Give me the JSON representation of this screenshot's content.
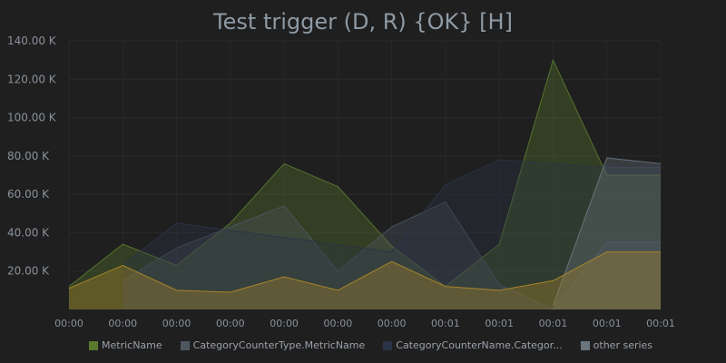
{
  "chart_data": {
    "type": "area",
    "title": "Test trigger (D, R) {OK} [H]",
    "y_tick_labels": [
      "20.00 K",
      "40.00 K",
      "60.00 K",
      "80.00 K",
      "100.00 K",
      "120.00 K",
      "140.00 K"
    ],
    "y_tick_values": [
      20000,
      40000,
      60000,
      80000,
      100000,
      120000,
      140000
    ],
    "x_tick_labels": [
      "00:00",
      "00:00",
      "00:00",
      "00:00",
      "00:00",
      "00:00",
      "00:00",
      "00:01",
      "00:01",
      "00:01",
      "00:01",
      "00:01"
    ],
    "ylim": [
      0,
      140000
    ],
    "grid": true,
    "legend_position": "bottom",
    "series": [
      {
        "name": "MetricName",
        "color": "#5a7a2e",
        "x": [
          0,
          1,
          2,
          3,
          4,
          5,
          6,
          7,
          8,
          9,
          10,
          11
        ],
        "values": [
          12000,
          34000,
          23000,
          45000,
          76000,
          64000,
          33000,
          12000,
          34000,
          130000,
          70000,
          70000
        ]
      },
      {
        "name": "CategoryCounterType.MetricName",
        "color": "#4e5760",
        "x": [
          1,
          2,
          4,
          5,
          6,
          7,
          8,
          9,
          10,
          11
        ],
        "values": [
          15000,
          32000,
          54000,
          20000,
          43000,
          56000,
          13000,
          0,
          35000,
          35000
        ]
      },
      {
        "name": "CategoryCounterName.Categor...",
        "color": "#2b3347",
        "x": [
          1,
          2,
          6,
          7,
          8,
          9,
          10,
          11
        ],
        "values": [
          23000,
          45000,
          30000,
          65000,
          78000,
          76000,
          74000,
          74000
        ]
      },
      {
        "name": "other series",
        "color": "#6a7680",
        "x": [
          9,
          10,
          11
        ],
        "values": [
          2000,
          79000,
          76000
        ]
      },
      {
        "name": "",
        "color": "#b08a2a",
        "x": [
          0,
          1,
          2,
          3,
          4,
          5,
          6,
          7,
          8,
          9,
          10,
          11
        ],
        "values": [
          11000,
          23000,
          10000,
          9000,
          17000,
          10000,
          25000,
          12000,
          10000,
          15000,
          30000,
          30000
        ]
      }
    ]
  }
}
